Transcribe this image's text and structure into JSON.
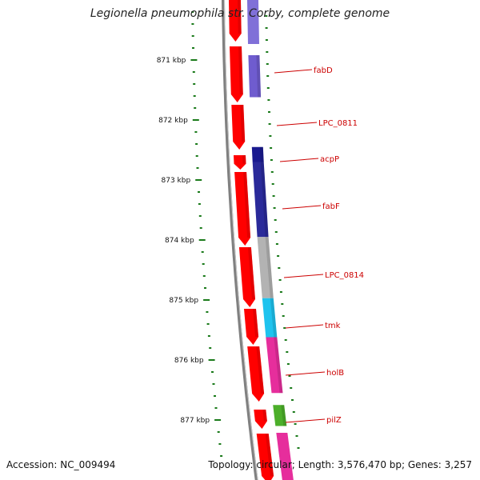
{
  "title": "Legionella pneumophila str. Corby, complete genome",
  "footer": {
    "accession": "Accession: NC_009494",
    "summary": "Topology: circular; Length: 3,576,470 bp; Genes: 3,257"
  },
  "ticks": [
    {
      "label": "871 kbp",
      "kbp": 871
    },
    {
      "label": "872 kbp",
      "kbp": 872
    },
    {
      "label": "873 kbp",
      "kbp": 873
    },
    {
      "label": "874 kbp",
      "kbp": 874
    },
    {
      "label": "875 kbp",
      "kbp": 875
    },
    {
      "label": "876 kbp",
      "kbp": 876
    },
    {
      "label": "877 kbp",
      "kbp": 877
    }
  ],
  "genes": [
    {
      "name": "fabD",
      "start_kbp": 870.92,
      "end_kbp": 871.62,
      "color": "#6f5ccf"
    },
    {
      "name": "LPC_0811",
      "start_kbp": 871.62,
      "end_kbp": 872.45,
      "color": "#ffffff"
    },
    {
      "name": "acpP",
      "start_kbp": 872.45,
      "end_kbp": 872.7,
      "color": "#1a1a8f"
    },
    {
      "name": "fabF",
      "start_kbp": 872.7,
      "end_kbp": 873.95,
      "color": "#2a2a9a"
    },
    {
      "name": "LPC_0814",
      "start_kbp": 873.95,
      "end_kbp": 874.97,
      "color": "#b3b3b3"
    },
    {
      "name": "tmk",
      "start_kbp": 874.97,
      "end_kbp": 875.62,
      "color": "#1ec3ee"
    },
    {
      "name": "holB",
      "start_kbp": 875.62,
      "end_kbp": 876.55,
      "color": "#e62e9c"
    },
    {
      "name": "pilZ",
      "start_kbp": 876.75,
      "end_kbp": 877.1,
      "color": "#4caf2a"
    }
  ],
  "colors": {
    "feature_track": "#ff0000",
    "backbone": "#808080",
    "ticks": "#1a7a1a",
    "label_text": "#cc0000",
    "label_line": "#cc0000"
  }
}
